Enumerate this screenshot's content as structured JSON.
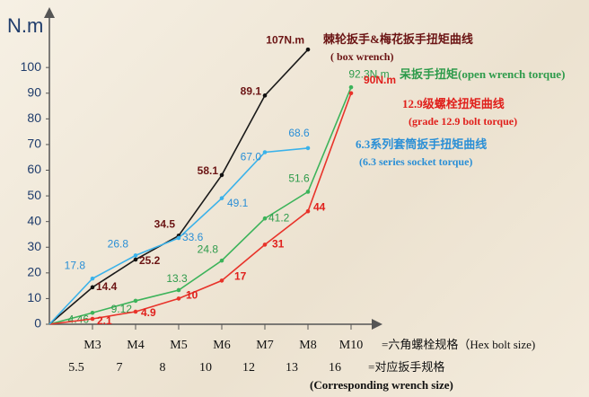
{
  "chart_data": {
    "type": "line",
    "y_label": "N.m",
    "categories": [
      null,
      "M3",
      "M4",
      "M5",
      "M6",
      "M7",
      "M8",
      "M10"
    ],
    "category_note": "=六角螺栓规格（Hex bolt size)",
    "wrench_sizes": [
      "5.5",
      "7",
      "8",
      "10",
      "12",
      "13",
      "16"
    ],
    "wrench_note": "=对应扳手规格",
    "wrench_note_en": "(Corresponding wrench size)",
    "ylim": [
      0,
      120
    ],
    "yticks": [
      0,
      10,
      20,
      30,
      40,
      50,
      60,
      70,
      80,
      90,
      100
    ],
    "series": [
      {
        "name": "棘轮扳手&梅花扳手扭矩曲线",
        "name_en": "( box wrench)",
        "color": "#1a1a1a",
        "label_color": "#6b1414",
        "values": [
          0,
          14.4,
          25.2,
          34.5,
          58.1,
          89.1,
          107,
          null
        ],
        "value_labels": [
          null,
          null,
          null,
          null,
          null,
          null,
          "107N.m",
          null
        ]
      },
      {
        "name": "呆扳手扭矩(open wrench torque)",
        "color": "#3cb35a",
        "label_color": "#2e9b4b",
        "values": [
          0,
          4.46,
          9.12,
          13.3,
          24.8,
          41.2,
          51.6,
          92.3
        ],
        "value_labels": [
          null,
          null,
          null,
          null,
          null,
          null,
          null,
          "92.3N.m"
        ]
      },
      {
        "name": "12.9级螺栓扭矩曲线",
        "name_en": "(grade 12.9  bolt torque)",
        "color": "#e8332a",
        "label_color": "#e0201c",
        "values": [
          0,
          2.1,
          4.9,
          10,
          17,
          31,
          44,
          90
        ],
        "value_labels": [
          null,
          null,
          null,
          null,
          null,
          null,
          null,
          "90N.m"
        ]
      },
      {
        "name": "6.3系列套筒扳手扭矩曲线",
        "name_en": "(6.3 series socket torque)",
        "color": "#3ab2ea",
        "label_color": "#2a8fd6",
        "values": [
          0,
          17.8,
          26.8,
          33.6,
          49.1,
          67,
          68.6,
          null
        ],
        "value_labels": [
          null,
          null,
          null,
          null,
          null,
          "67.0",
          null,
          null
        ]
      }
    ]
  }
}
